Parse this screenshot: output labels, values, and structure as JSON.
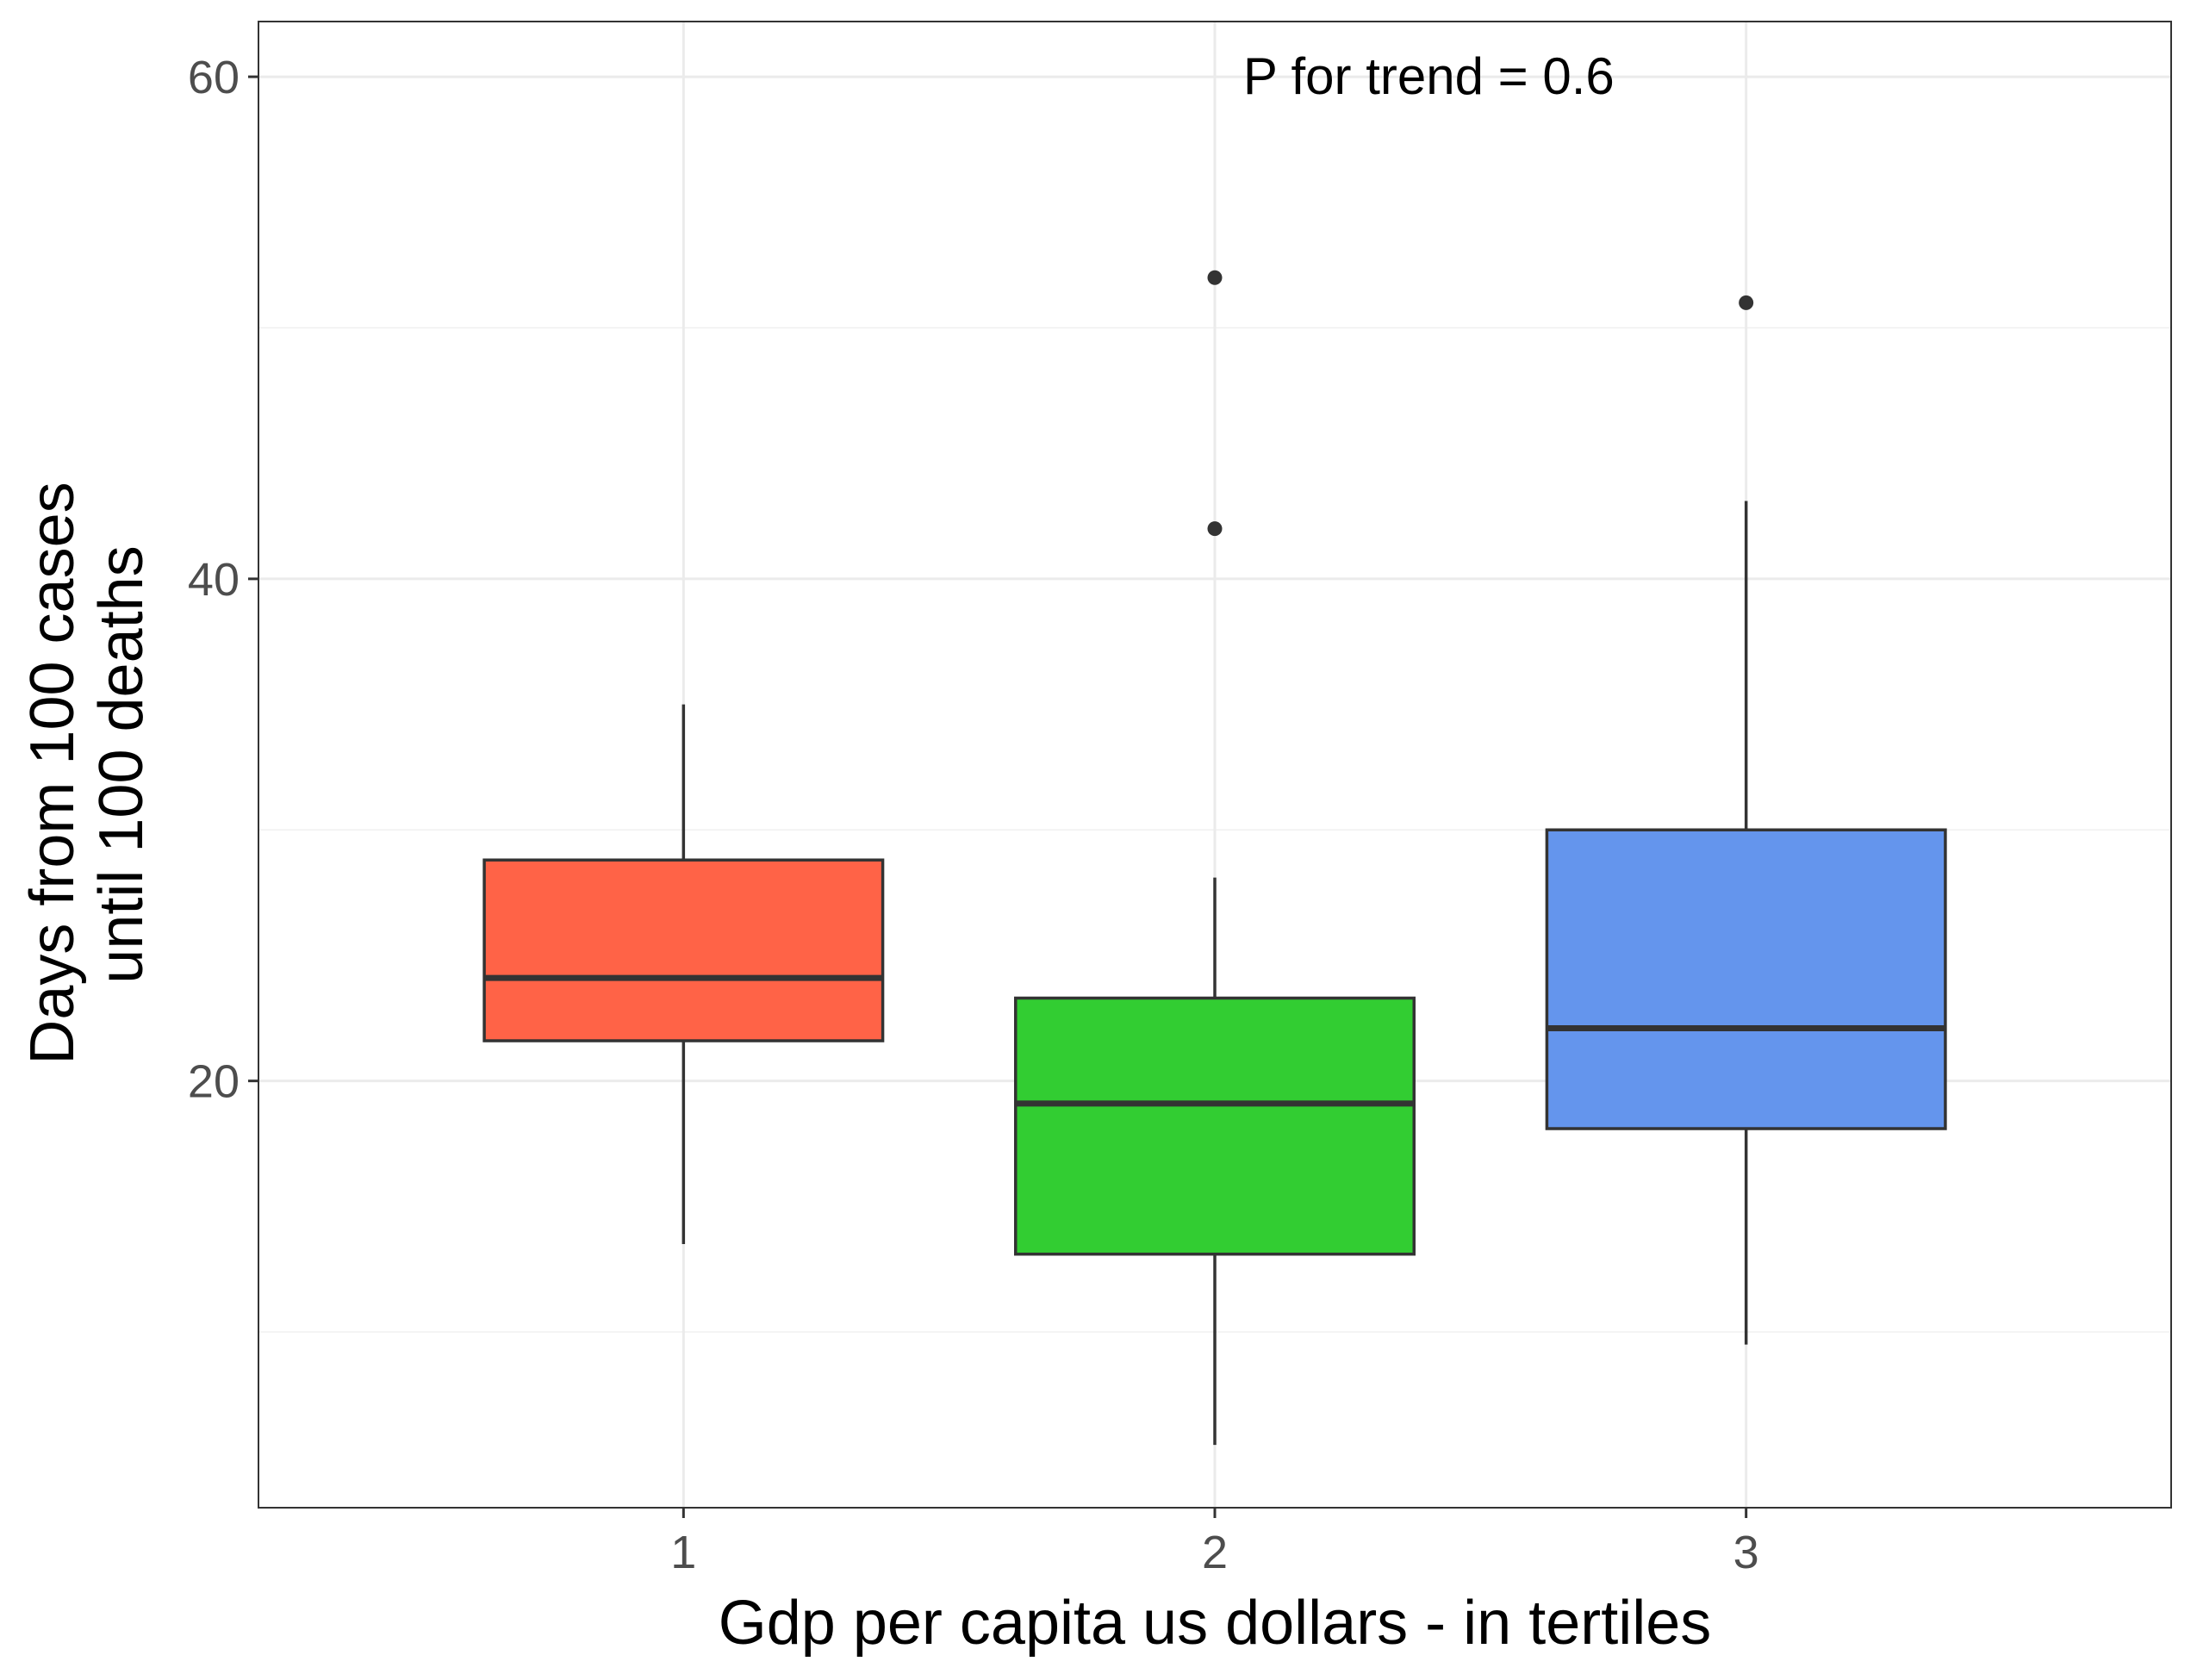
{
  "chart_data": {
    "type": "boxplot",
    "title": "",
    "xlabel": "Gdp per capita us dollars - in tertiles",
    "ylabel_lines": [
      "Days from 100 cases",
      "until 100 deaths"
    ],
    "annotation": "P for trend = 0.6",
    "categories": [
      "1",
      "2",
      "3"
    ],
    "ylim": [
      3,
      62.2
    ],
    "y_ticks": [
      20,
      40,
      60
    ],
    "y_tick_labels": [
      "20",
      "40",
      "60"
    ],
    "grid": true,
    "boxes": [
      {
        "category": "1",
        "color": "#FF6347",
        "whisker_low": 13.5,
        "q1": 21.6,
        "median": 24.1,
        "q3": 28.8,
        "whisker_high": 35,
        "outliers": []
      },
      {
        "category": "2",
        "color": "#32CD32",
        "whisker_low": 5.5,
        "q1": 13.1,
        "median": 19.1,
        "q3": 23.3,
        "whisker_high": 28.1,
        "outliers": [
          42,
          52
        ]
      },
      {
        "category": "3",
        "color": "#6495ED",
        "whisker_low": 9.5,
        "q1": 18.1,
        "median": 22.1,
        "q3": 30,
        "whisker_high": 43.1,
        "outliers": [
          51
        ]
      }
    ]
  }
}
